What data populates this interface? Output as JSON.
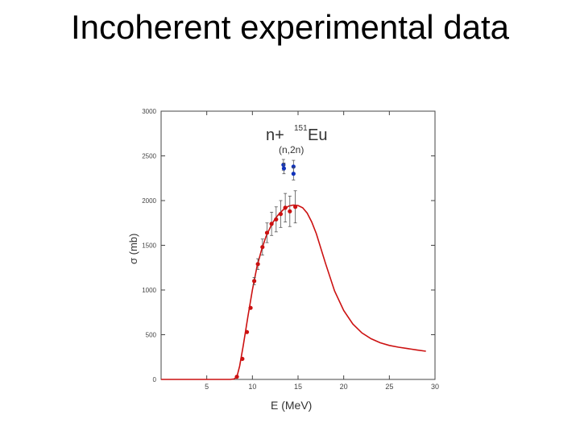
{
  "slide": {
    "title": "Incoherent experimental data"
  },
  "chart_data": {
    "type": "scatter",
    "reaction": "n+",
    "nucleus": "Eu",
    "mass_number": "151",
    "channel": "(n,2n)",
    "xlabel": "E  (MeV)",
    "ylabel": "σ  (mb)",
    "xlim": [
      0,
      30
    ],
    "ylim": [
      0,
      3000
    ],
    "xticks": [
      5,
      10,
      15,
      20,
      25,
      30
    ],
    "yticks": [
      0,
      500,
      1000,
      1500,
      2000,
      2500,
      3000
    ],
    "grid": false,
    "series": [
      {
        "kind": "line",
        "color": "#cc1111",
        "x": [
          0,
          7.6,
          8.0,
          8.3,
          8.6,
          9.0,
          9.5,
          10.0,
          10.5,
          11.0,
          11.5,
          12.0,
          12.5,
          13.0,
          13.5,
          14.0,
          14.5,
          15.0,
          15.5,
          16.0,
          16.5,
          17.0,
          18.0,
          19.0,
          20.0,
          21.0,
          22.0,
          23.0,
          24.0,
          25.0,
          26.0,
          27.0,
          28.0,
          29.0
        ],
        "y": [
          0,
          0,
          5,
          30,
          150,
          380,
          700,
          1000,
          1260,
          1450,
          1600,
          1710,
          1800,
          1860,
          1910,
          1940,
          1950,
          1945,
          1920,
          1860,
          1760,
          1630,
          1300,
          990,
          770,
          620,
          520,
          455,
          410,
          380,
          360,
          345,
          330,
          315
        ]
      },
      {
        "kind": "points",
        "color": "#cc1111",
        "x": [
          8.3,
          8.9,
          9.4,
          9.8,
          10.2,
          10.6,
          11.1,
          11.6,
          12.1,
          12.6,
          13.1,
          13.6,
          14.1,
          14.7
        ],
        "y": [
          30,
          230,
          530,
          800,
          1100,
          1290,
          1480,
          1640,
          1740,
          1790,
          1850,
          1920,
          1880,
          1930
        ],
        "err": [
          0,
          0,
          0,
          0,
          40,
          60,
          90,
          110,
          130,
          140,
          150,
          160,
          170,
          180
        ]
      },
      {
        "kind": "points",
        "color": "#1133bb",
        "x": [
          13.4,
          13.45,
          14.5,
          14.5
        ],
        "y": [
          2400,
          2360,
          2380,
          2300
        ],
        "err": [
          60,
          60,
          70,
          70
        ]
      }
    ]
  }
}
